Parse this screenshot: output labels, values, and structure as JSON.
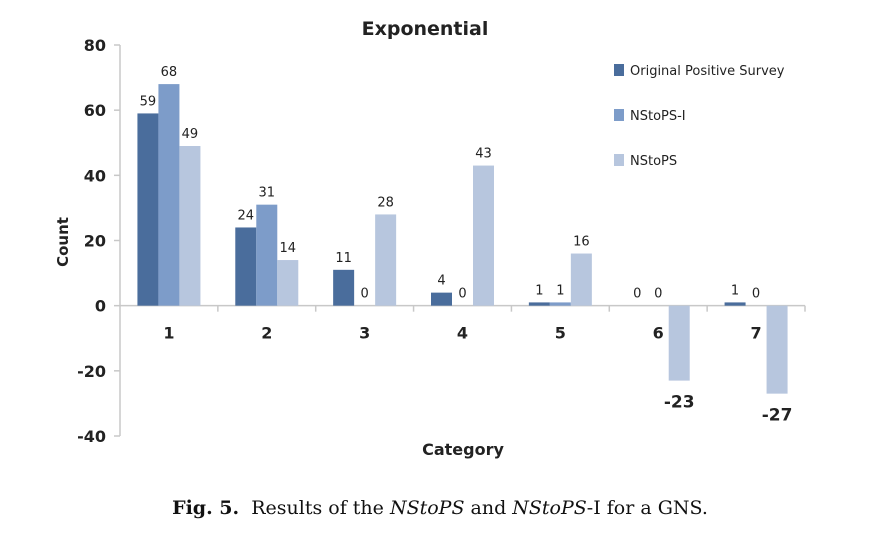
{
  "chart_data": {
    "type": "bar",
    "title": "Exponential",
    "xlabel": "Category",
    "ylabel": "Count",
    "categories": [
      "1",
      "2",
      "3",
      "4",
      "5",
      "6",
      "7"
    ],
    "ylim": [
      -40,
      80
    ],
    "yticks": [
      "80",
      "60",
      "40",
      "20",
      "0",
      "-20",
      "-40"
    ],
    "ytick_values": [
      80,
      60,
      40,
      20,
      0,
      -20,
      -40
    ],
    "grid": false,
    "legend_position": "top-right",
    "series": [
      {
        "name": "Original Positive Survey",
        "color": "#4a6d9c",
        "values": [
          59,
          24,
          11,
          4,
          1,
          0,
          1
        ],
        "labels": [
          "59",
          "24",
          "11",
          "4",
          "1",
          "0",
          "1"
        ]
      },
      {
        "name": "NStoPS-I",
        "color": "#7d9cc9",
        "values": [
          68,
          31,
          0,
          0,
          1,
          0,
          0
        ],
        "labels": [
          "68",
          "31",
          "0",
          "0",
          "1",
          "0",
          "0"
        ]
      },
      {
        "name": "NStoPS",
        "color": "#b7c6de",
        "values": [
          49,
          14,
          28,
          43,
          16,
          -23,
          -27
        ],
        "labels": [
          "49",
          "14",
          "28",
          "43",
          "16",
          "-23",
          "-27"
        ]
      }
    ]
  },
  "caption": {
    "fig": "Fig. 5.",
    "t1": "Results of the ",
    "i1": "NStoPS",
    "t2": " and ",
    "i2": "NStoPS",
    "t3": "-I for a GNS."
  }
}
